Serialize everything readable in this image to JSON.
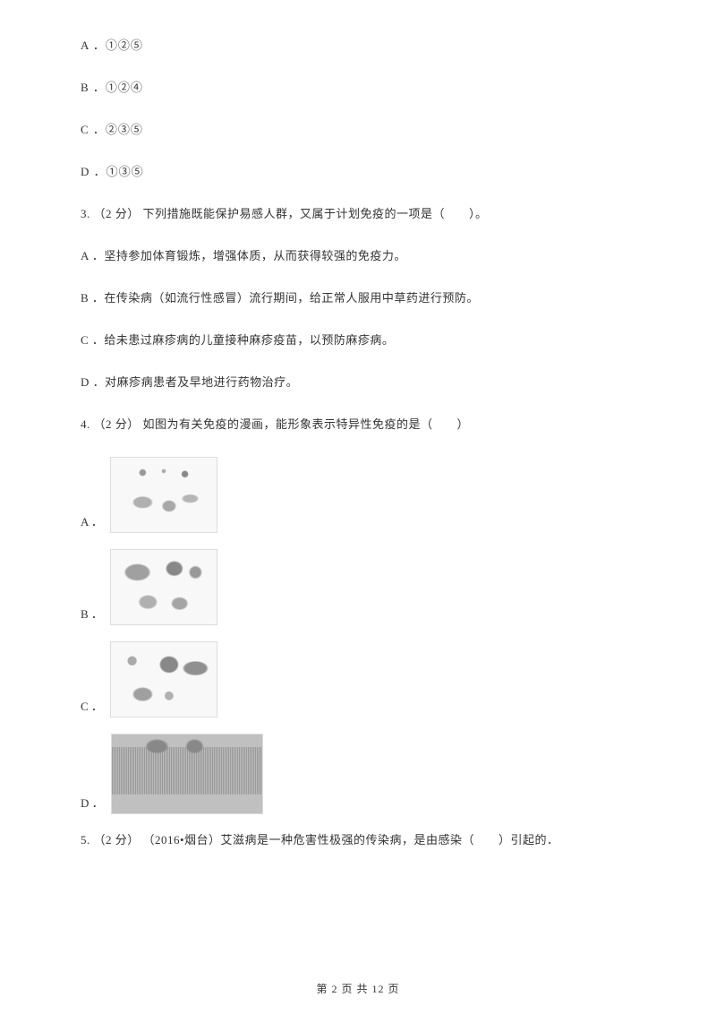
{
  "options_prev": {
    "a": "A ．①②⑤",
    "b": "B ．①②④",
    "c": "C ．②③⑤",
    "d": "D ．①③⑤"
  },
  "question3": {
    "stem": "3.  （2 分） 下列措施既能保护易感人群，又属于计划免疫的一项是（　　）。",
    "a": "A ．坚持参加体育锻炼，增强体质，从而获得较强的免疫力。",
    "b": "B ．在传染病（如流行性感冒）流行期间，给正常人服用中草药进行预防。",
    "c": "C ．给未患过麻疹病的儿童接种麻疹疫苗，以预防麻疹病。",
    "d": "D ．对麻疹病患者及早地进行药物治疗。"
  },
  "question4": {
    "stem": "4.  （2 分） 如图为有关免疫的漫画，能形象表示特异性免疫的是（　　）",
    "a_letter": "A ．",
    "b_letter": "B ．",
    "c_letter": "C ．",
    "d_letter": "D ．"
  },
  "question5": {
    "stem": "5.  （2 分） （2016•烟台）艾滋病是一种危害性极强的传染病，是由感染（　　）引起的．"
  },
  "footer": "第 2 页 共 12 页",
  "colors": {
    "text": "#333333",
    "background": "#ffffff"
  },
  "font": {
    "family": "SimSun",
    "size": 13
  }
}
